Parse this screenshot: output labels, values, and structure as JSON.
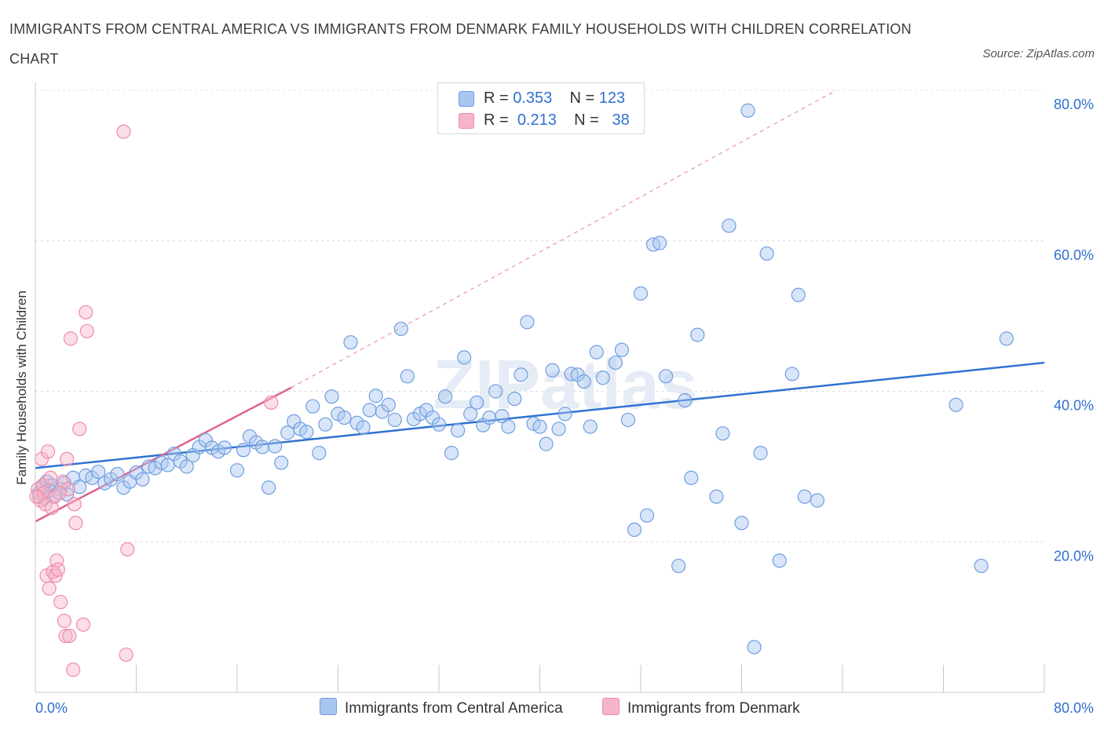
{
  "title": "IMMIGRANTS FROM CENTRAL AMERICA VS IMMIGRANTS FROM DENMARK FAMILY HOUSEHOLDS WITH CHILDREN CORRELATION CHART",
  "source": "Source: ZipAtlas.com",
  "watermark": "ZIPatlas",
  "legend": {
    "rows": [
      {
        "r_label": "R = ",
        "r_value": "0.353",
        "n_label": "N = ",
        "n_value": "123",
        "color": "#a9c6f0"
      },
      {
        "r_label": "R = ",
        "r_value": "0.213",
        "n_label": "N = ",
        "n_value": "38",
        "color": "#f6b6c9"
      }
    ]
  },
  "chart_data": {
    "type": "scatter",
    "ylabel": "Family Households with Children",
    "x_tick_labels": [
      "0.0%",
      "80.0%"
    ],
    "y_tick_labels": [
      "20.0%",
      "40.0%",
      "60.0%",
      "80.0%"
    ],
    "xlim": [
      0,
      80
    ],
    "ylim": [
      0,
      80
    ],
    "grid": true,
    "legend_position": "bottom",
    "series": [
      {
        "name": "Immigrants from Central America",
        "color": "#6f9ee0",
        "fill": "#a9c6f0",
        "line_color": "#2e72d2",
        "trend": [
          [
            0,
            29.8
          ],
          [
            80,
            43.8
          ]
        ],
        "points": [
          [
            0.3,
            26.5
          ],
          [
            0.5,
            27.2
          ],
          [
            0.7,
            25.8
          ],
          [
            0.9,
            28.0
          ],
          [
            1.1,
            26.8
          ],
          [
            1.3,
            27.5
          ],
          [
            1.6,
            26.2
          ],
          [
            2.0,
            27.0
          ],
          [
            2.3,
            27.8
          ],
          [
            2.5,
            26.3
          ],
          [
            3.0,
            28.5
          ],
          [
            3.5,
            27.3
          ],
          [
            4.0,
            28.8
          ],
          [
            4.5,
            28.5
          ],
          [
            5.0,
            29.3
          ],
          [
            5.5,
            27.8
          ],
          [
            6.0,
            28.3
          ],
          [
            6.5,
            29.0
          ],
          [
            7.0,
            27.2
          ],
          [
            7.5,
            28.0
          ],
          [
            8.0,
            29.2
          ],
          [
            8.5,
            28.3
          ],
          [
            9.0,
            30.0
          ],
          [
            9.5,
            29.8
          ],
          [
            10.0,
            30.5
          ],
          [
            10.5,
            30.2
          ],
          [
            11.0,
            31.7
          ],
          [
            11.5,
            30.7
          ],
          [
            12.0,
            30.0
          ],
          [
            12.5,
            31.5
          ],
          [
            13.0,
            32.6
          ],
          [
            13.5,
            33.5
          ],
          [
            14.0,
            32.5
          ],
          [
            14.5,
            32.0
          ],
          [
            15.0,
            32.5
          ],
          [
            16.0,
            29.5
          ],
          [
            16.5,
            32.2
          ],
          [
            17.0,
            34.0
          ],
          [
            17.5,
            33.2
          ],
          [
            18.0,
            32.6
          ],
          [
            18.5,
            27.2
          ],
          [
            19.0,
            32.7
          ],
          [
            19.5,
            30.5
          ],
          [
            20.0,
            34.5
          ],
          [
            20.5,
            36.0
          ],
          [
            21.0,
            35.0
          ],
          [
            21.5,
            34.6
          ],
          [
            22.0,
            38.0
          ],
          [
            22.5,
            31.8
          ],
          [
            23.0,
            35.6
          ],
          [
            23.5,
            39.3
          ],
          [
            24.0,
            37.0
          ],
          [
            24.5,
            36.5
          ],
          [
            25.0,
            46.5
          ],
          [
            25.5,
            35.8
          ],
          [
            26.0,
            35.2
          ],
          [
            26.5,
            37.5
          ],
          [
            27.0,
            39.4
          ],
          [
            27.5,
            37.3
          ],
          [
            28.0,
            38.2
          ],
          [
            28.5,
            36.2
          ],
          [
            29.0,
            48.3
          ],
          [
            29.5,
            42.0
          ],
          [
            30.0,
            36.3
          ],
          [
            30.5,
            37.0
          ],
          [
            31.0,
            37.5
          ],
          [
            31.5,
            36.5
          ],
          [
            32.0,
            35.6
          ],
          [
            32.5,
            39.3
          ],
          [
            33.0,
            31.8
          ],
          [
            33.5,
            34.8
          ],
          [
            34.0,
            44.5
          ],
          [
            34.5,
            37.0
          ],
          [
            35.0,
            38.5
          ],
          [
            35.5,
            35.5
          ],
          [
            36.0,
            36.5
          ],
          [
            36.5,
            40.0
          ],
          [
            37.0,
            36.7
          ],
          [
            37.5,
            35.3
          ],
          [
            38.0,
            39.0
          ],
          [
            38.5,
            42.2
          ],
          [
            39.0,
            49.2
          ],
          [
            39.5,
            35.7
          ],
          [
            40.0,
            35.3
          ],
          [
            40.5,
            33.0
          ],
          [
            41.0,
            42.8
          ],
          [
            41.5,
            35.0
          ],
          [
            42.0,
            37.0
          ],
          [
            42.5,
            42.3
          ],
          [
            43.0,
            42.2
          ],
          [
            43.5,
            41.3
          ],
          [
            44.0,
            35.3
          ],
          [
            44.5,
            45.2
          ],
          [
            45.0,
            41.8
          ],
          [
            46.0,
            43.8
          ],
          [
            46.5,
            45.5
          ],
          [
            47.0,
            36.2
          ],
          [
            47.5,
            21.6
          ],
          [
            48.0,
            53.0
          ],
          [
            48.5,
            23.5
          ],
          [
            49.0,
            59.5
          ],
          [
            49.5,
            59.7
          ],
          [
            50.0,
            42.0
          ],
          [
            51.0,
            16.8
          ],
          [
            51.5,
            38.8
          ],
          [
            52.0,
            28.5
          ],
          [
            52.5,
            47.5
          ],
          [
            54.0,
            26.0
          ],
          [
            54.5,
            34.4
          ],
          [
            55.0,
            62.0
          ],
          [
            56.0,
            22.5
          ],
          [
            56.5,
            77.3
          ],
          [
            57.0,
            6.0
          ],
          [
            57.5,
            31.8
          ],
          [
            58.0,
            58.3
          ],
          [
            59.0,
            17.5
          ],
          [
            60.0,
            42.3
          ],
          [
            60.5,
            52.8
          ],
          [
            61.0,
            26.0
          ],
          [
            62.0,
            25.5
          ],
          [
            73.0,
            38.2
          ],
          [
            75.0,
            16.8
          ],
          [
            77.0,
            47.0
          ]
        ]
      },
      {
        "name": "Immigrants from Denmark",
        "color": "#ee8cab",
        "fill": "#f6b6c9",
        "line_color": "#e0628f",
        "trend": [
          [
            0,
            22.7
          ],
          [
            20.3,
            40.5
          ]
        ],
        "trend_ext": [
          [
            20.3,
            40.5
          ],
          [
            63.5,
            80.0
          ]
        ],
        "points": [
          [
            0.2,
            27.0
          ],
          [
            0.3,
            26.0
          ],
          [
            0.4,
            25.5
          ],
          [
            0.5,
            31.0
          ],
          [
            0.6,
            27.5
          ],
          [
            0.7,
            26.5
          ],
          [
            0.8,
            25.0
          ],
          [
            0.9,
            15.5
          ],
          [
            1.0,
            32.0
          ],
          [
            1.1,
            13.8
          ],
          [
            1.2,
            28.5
          ],
          [
            1.3,
            24.5
          ],
          [
            1.4,
            16.0
          ],
          [
            1.5,
            26.0
          ],
          [
            1.6,
            15.5
          ],
          [
            1.7,
            17.5
          ],
          [
            1.8,
            16.3
          ],
          [
            2.0,
            12.0
          ],
          [
            2.2,
            28.0
          ],
          [
            2.3,
            9.5
          ],
          [
            2.4,
            7.5
          ],
          [
            2.5,
            31.0
          ],
          [
            2.6,
            27.0
          ],
          [
            2.7,
            7.5
          ],
          [
            2.8,
            47.0
          ],
          [
            3.0,
            3.0
          ],
          [
            3.1,
            25.0
          ],
          [
            3.2,
            22.5
          ],
          [
            3.5,
            35.0
          ],
          [
            3.8,
            9.0
          ],
          [
            4.0,
            50.5
          ],
          [
            4.1,
            48.0
          ],
          [
            7.0,
            74.5
          ],
          [
            7.2,
            5.0
          ],
          [
            7.3,
            19.0
          ],
          [
            18.7,
            38.5
          ],
          [
            1.9,
            26.5
          ],
          [
            0.1,
            26.0
          ]
        ]
      }
    ]
  }
}
